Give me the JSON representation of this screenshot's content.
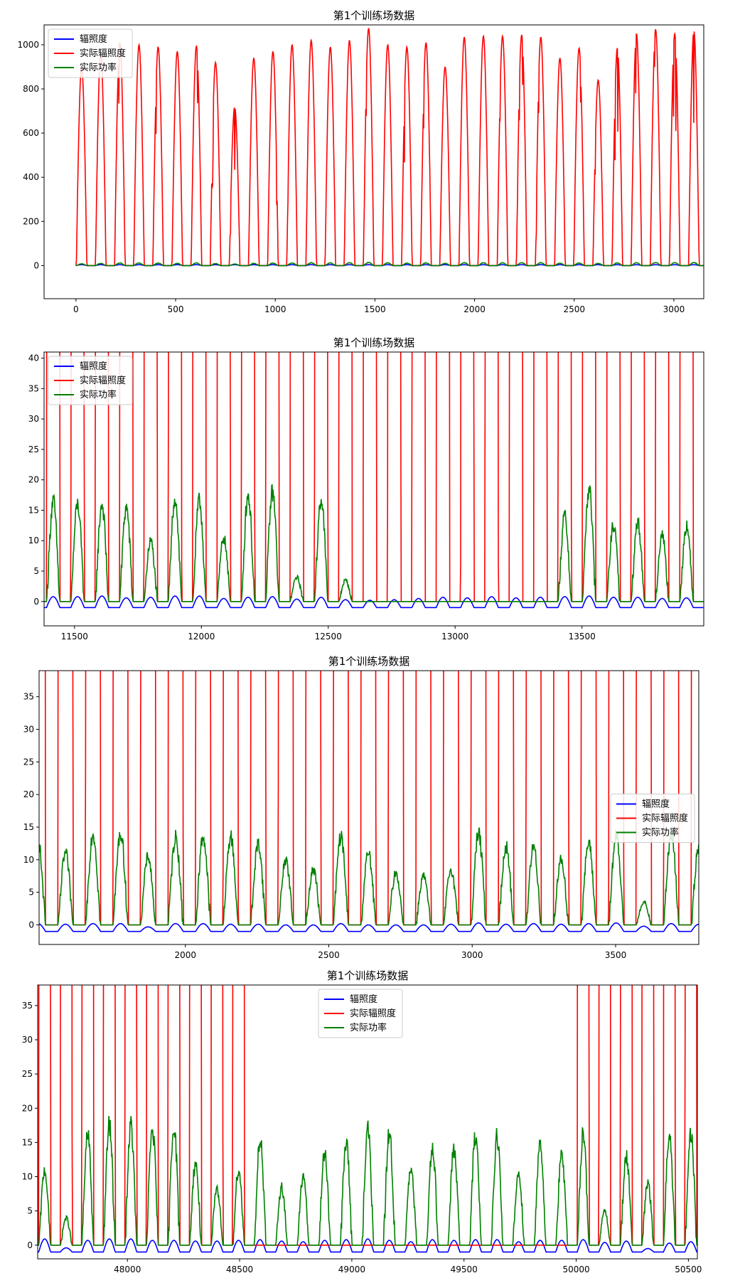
{
  "figure": {
    "charts": [
      {
        "title": "第1个训练场数据",
        "type": "line",
        "xlim": [
          -160,
          3150
        ],
        "ylim": [
          -150,
          1090
        ],
        "xticks": [
          0,
          500,
          1000,
          1500,
          2000,
          2500,
          3000
        ],
        "yticks": [
          0,
          200,
          400,
          600,
          800,
          1000
        ],
        "legend": "top-left",
        "xstart": 0,
        "xend": 3150,
        "dayPeriod": 96,
        "nDays": 33,
        "offsetFrac": 0.02,
        "dayWidthFrac": 0.55,
        "red": [
          900,
          960,
          1010,
          1000,
          990,
          970,
          995,
          920,
          720,
          940,
          970,
          1000,
          1020,
          990,
          1020,
          1075,
          1000,
          990,
          1010,
          900,
          1035,
          1040,
          1040,
          1045,
          1035,
          940,
          985,
          840,
          985,
          1050,
          1070,
          1050,
          1065
        ],
        "green": [
          8,
          10,
          12,
          12,
          11,
          10,
          12,
          9,
          7,
          10,
          11,
          12,
          13,
          12,
          13,
          14,
          12,
          11,
          12,
          10,
          13,
          13,
          13,
          13,
          13,
          11,
          12,
          10,
          12,
          13,
          14,
          13,
          14
        ],
        "blue": [
          4,
          4,
          4,
          4,
          4,
          4,
          4,
          4,
          4,
          4,
          4,
          4,
          4,
          4,
          4,
          4,
          4,
          4,
          4,
          4,
          4,
          4,
          4,
          4,
          4,
          4,
          4,
          4,
          4,
          4,
          4,
          4,
          4
        ],
        "blueMin": 0,
        "redTrunc": false
      },
      {
        "title": "第1个训练场数据",
        "type": "line",
        "xlim": [
          11380,
          13980
        ],
        "ylim": [
          -4,
          41
        ],
        "xticks": [
          11500,
          12000,
          12500,
          13000,
          13500
        ],
        "yticks": [
          0,
          5,
          10,
          15,
          20,
          25,
          30,
          35,
          40
        ],
        "legend": "top-left",
        "xstart": 11380,
        "xend": 13980,
        "dayPeriod": 96,
        "nDays": 28,
        "offsetFrac": 0.1,
        "dayWidthFrac": 0.55,
        "red": [
          900,
          900,
          900,
          900,
          900,
          900,
          900,
          900,
          900,
          900,
          900,
          900,
          900,
          900,
          900,
          900,
          900,
          900,
          900,
          900,
          900,
          900,
          900,
          900,
          900,
          900,
          900,
          900
        ],
        "green": [
          16.5,
          16,
          16,
          15.5,
          10,
          17,
          16.5,
          10.5,
          17.5,
          18,
          4,
          17,
          3.5,
          0,
          0,
          0,
          0,
          0,
          0,
          0,
          0,
          14,
          18.5,
          12.5,
          13,
          11,
          12.5,
          18
        ],
        "blue": [
          0.8,
          0.8,
          0.9,
          0.6,
          0.7,
          0.9,
          0.9,
          0.5,
          0.7,
          0.8,
          0.4,
          0.7,
          0.3,
          0.2,
          0.3,
          0.5,
          0.7,
          0.6,
          0.8,
          0.6,
          0.7,
          0.8,
          0.9,
          0.7,
          0.7,
          0.5,
          0.6,
          0.9
        ],
        "blueMin": -1,
        "redTrunc": true
      },
      {
        "title": "第1个训练场数据",
        "type": "line",
        "xlim": [
          1490,
          3790
        ],
        "ylim": [
          -3,
          39
        ],
        "xticks": [
          2000,
          2500,
          3000,
          3500
        ],
        "yticks": [
          0,
          5,
          10,
          15,
          20,
          25,
          30,
          35
        ],
        "legend": "center-right",
        "xstart": 1450,
        "xend": 3790,
        "dayPeriod": 96,
        "nDays": 25,
        "offsetFrac": 0.1,
        "dayWidthFrac": 0.55,
        "red": [
          900,
          900,
          900,
          900,
          900,
          900,
          900,
          900,
          900,
          900,
          900,
          900,
          900,
          900,
          900,
          900,
          900,
          900,
          900,
          900,
          900,
          900,
          900,
          900,
          900
        ],
        "green": [
          13,
          11,
          14,
          14,
          10.5,
          13.5,
          13.5,
          13.5,
          12.5,
          10,
          8.5,
          13.5,
          11,
          8,
          7.5,
          8.5,
          14,
          12,
          12,
          10,
          12.5,
          13.5,
          3.5,
          14,
          12
        ],
        "blue": [
          0.2,
          0.1,
          0.2,
          0.2,
          -0.3,
          0.2,
          0.2,
          0.1,
          0.1,
          0,
          0,
          0.2,
          0,
          0,
          0,
          0.1,
          0.3,
          0.1,
          0.2,
          0.1,
          0.2,
          0.3,
          -0.2,
          0.2,
          0.1
        ],
        "blueMin": -1,
        "redTrunc": true
      },
      {
        "title": "第1个训练场数据",
        "type": "line",
        "xlim": [
          47600,
          50540
        ],
        "ylim": [
          -2,
          38
        ],
        "xticks": [
          48000,
          48500,
          49000,
          49500,
          50000,
          50500
        ],
        "yticks": [
          0,
          5,
          10,
          15,
          20,
          25,
          30,
          35
        ],
        "legend": "upper-center",
        "xstart": 47600,
        "xend": 50540,
        "dayPeriod": 96,
        "nDays": 31,
        "offsetFrac": 0.05,
        "dayWidthFrac": 0.55,
        "red": [
          900,
          900,
          900,
          900,
          900,
          900,
          900,
          900,
          900,
          900,
          0,
          0,
          0,
          0,
          0,
          0,
          0,
          0,
          0,
          0,
          0,
          0,
          0,
          0,
          0,
          900,
          900,
          900,
          900,
          900,
          900
        ],
        "green": [
          11,
          4,
          16,
          17.5,
          17.5,
          17,
          17.5,
          12,
          8,
          11,
          15.5,
          8.5,
          10,
          13.5,
          15,
          17,
          16.5,
          11,
          14.5,
          14,
          16,
          16,
          10.5,
          15,
          13,
          16.5,
          5,
          13,
          9,
          16,
          16
        ],
        "blue": [
          0.9,
          -0.4,
          0.7,
          0.9,
          0.9,
          0.7,
          0.7,
          0.6,
          0.6,
          0.7,
          0.8,
          0.6,
          0.5,
          0.7,
          0.8,
          0.9,
          0.7,
          0.5,
          0.8,
          0.7,
          0.8,
          0.8,
          0.5,
          0.7,
          0.7,
          0.8,
          0.4,
          0.6,
          -0.5,
          0.3,
          0.5
        ],
        "blueMin": -1,
        "redTrunc": true
      }
    ],
    "legend_labels": [
      "辐照度",
      "实际辐照度",
      "实际功率"
    ],
    "colors": {
      "irradiance": "#0000ff",
      "actual_irradiance": "#ff0000",
      "actual_power": "#008000"
    }
  },
  "chart_data": [
    {
      "type": "line",
      "title": "第1个训练场数据",
      "xlim": [
        -160,
        3150
      ],
      "ylim": [
        -150,
        1090
      ],
      "series": [
        {
          "name": "辐照度",
          "color": "#0000ff",
          "daily_peak": 4
        },
        {
          "name": "实际辐照度",
          "color": "#ff0000",
          "daily_peak": [
            900,
            960,
            1010,
            1000,
            990,
            970,
            995,
            920,
            720,
            940,
            970,
            1000,
            1020,
            990,
            1020,
            1075,
            1000,
            990,
            1010,
            900,
            1035,
            1040,
            1040,
            1045,
            1035,
            940,
            985,
            840,
            985,
            1050,
            1070,
            1050,
            1065
          ]
        },
        {
          "name": "实际功率",
          "color": "#008000",
          "daily_peak": [
            8,
            10,
            12,
            12,
            11,
            10,
            12,
            9,
            7,
            10,
            11,
            12,
            13,
            12,
            13,
            14,
            12,
            11,
            12,
            10,
            13,
            13,
            13,
            13,
            13,
            11,
            12,
            10,
            12,
            13,
            14,
            13,
            14
          ]
        }
      ],
      "legend": "top-left",
      "grid": false
    },
    {
      "type": "line",
      "title": "第1个训练场数据",
      "xlim": [
        11380,
        13980
      ],
      "ylim": [
        -4,
        41
      ],
      "series": [
        {
          "name": "辐照度",
          "color": "#0000ff",
          "daily_peak": [
            0.8,
            0.8,
            0.9,
            0.6,
            0.7,
            0.9,
            0.9,
            0.5,
            0.7,
            0.8,
            0.4,
            0.7,
            0.3,
            0.2,
            0.3,
            0.5,
            0.7,
            0.6,
            0.8,
            0.6,
            0.7,
            0.8,
            0.9,
            0.7,
            0.7,
            0.5,
            0.6,
            0.9
          ],
          "night_value": -1
        },
        {
          "name": "实际辐照度",
          "color": "#ff0000",
          "note_values_exceed_axis": true
        },
        {
          "name": "实际功率",
          "color": "#008000",
          "daily_peak": [
            16.5,
            16,
            16,
            15.5,
            10,
            17,
            16.5,
            10.5,
            17.5,
            18,
            4,
            17,
            3.5,
            0,
            0,
            0,
            0,
            0,
            0,
            0,
            0,
            14,
            18.5,
            12.5,
            13,
            11,
            12.5,
            18
          ]
        }
      ],
      "legend": "top-left",
      "grid": false
    },
    {
      "type": "line",
      "title": "第1个训练场数据",
      "xlim": [
        1490,
        3790
      ],
      "ylim": [
        -3,
        39
      ],
      "series": [
        {
          "name": "辐照度",
          "color": "#0000ff",
          "night_value": -1
        },
        {
          "name": "实际辐照度",
          "color": "#ff0000",
          "note_values_exceed_axis": true
        },
        {
          "name": "实际功率",
          "color": "#008000",
          "daily_peak": [
            13,
            11,
            14,
            14,
            10.5,
            13.5,
            13.5,
            13.5,
            12.5,
            10,
            8.5,
            13.5,
            11,
            8,
            7.5,
            8.5,
            14,
            12,
            12,
            10,
            12.5,
            13.5,
            3.5,
            14,
            12
          ]
        }
      ],
      "legend": "center-right",
      "grid": false
    },
    {
      "type": "line",
      "title": "第1个训练场数据",
      "xlim": [
        47600,
        50540
      ],
      "ylim": [
        -2,
        38
      ],
      "series": [
        {
          "name": "辐照度",
          "color": "#0000ff",
          "night_value": -1
        },
        {
          "name": "实际辐照度",
          "color": "#ff0000",
          "note_values_exceed_axis": true
        },
        {
          "name": "实际功率",
          "color": "#008000",
          "daily_peak": [
            11,
            4,
            16,
            17.5,
            17.5,
            17,
            17.5,
            12,
            8,
            11,
            15.5,
            8.5,
            10,
            13.5,
            15,
            17,
            16.5,
            11,
            14.5,
            14,
            16,
            16,
            10.5,
            15,
            13,
            16.5,
            5,
            13,
            9,
            16,
            16
          ]
        }
      ],
      "legend": "upper-center",
      "grid": false
    }
  ]
}
